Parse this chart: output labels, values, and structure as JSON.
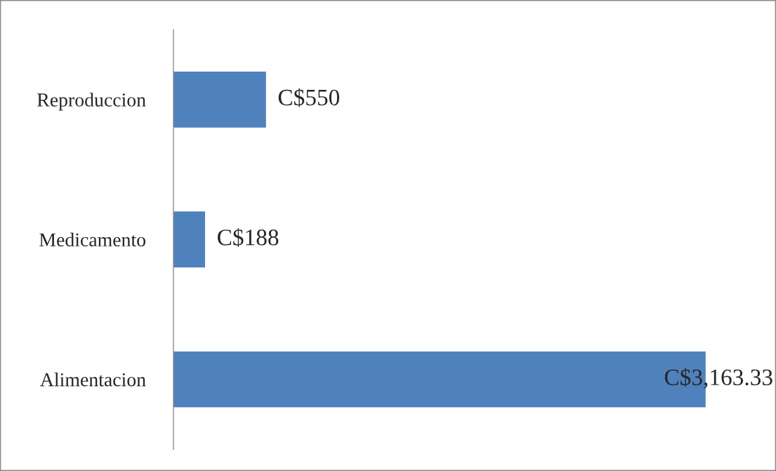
{
  "chart_data": {
    "type": "bar",
    "orientation": "horizontal",
    "categories": [
      "Reproduccion",
      "Medicamento",
      "Alimentacion"
    ],
    "values": [
      550,
      188,
      3163.33
    ],
    "value_labels": [
      "C$550",
      "C$188",
      "C$3,163.33"
    ],
    "color": "#4f81bd",
    "tick_labels": "y",
    "grid": false,
    "legend": false
  }
}
